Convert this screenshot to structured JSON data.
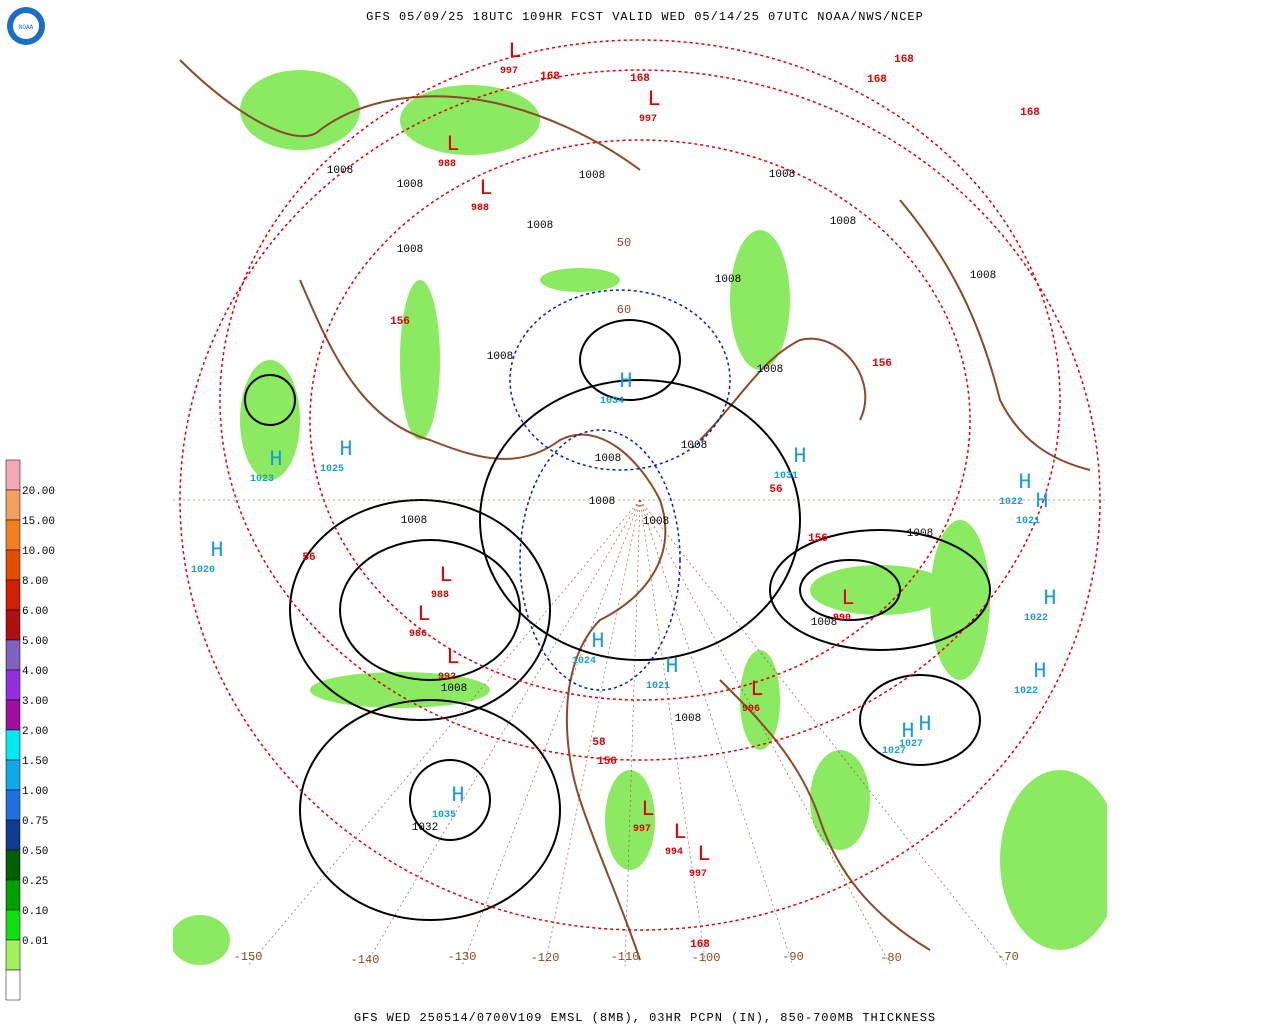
{
  "header": {
    "title": "GFS 05/09/25 18UTC 109HR FCST VALID WED 05/14/25 07UTC NOAA/NWS/NCEP",
    "logo": "NOAA"
  },
  "footer": {
    "text": "GFS WED 250514/0700V109 EMSL (8MB), 03HR PCPN (IN), 850-700MB THICKNESS"
  },
  "legend": {
    "labels": [
      "20.00",
      "15.00",
      "10.00",
      "8.00",
      "6.00",
      "5.00",
      "4.00",
      "3.00",
      "2.00",
      "1.50",
      "1.00",
      "0.75",
      "0.50",
      "0.25",
      "0.10",
      "0.01"
    ],
    "colors": [
      "#f4a8b8",
      "#f4a060",
      "#f08020",
      "#e05000",
      "#d02000",
      "#b01010",
      "#8060c0",
      "#9030e0",
      "#a010a0",
      "#00e8f0",
      "#10a8e8",
      "#2070e0",
      "#103c90",
      "#006000",
      "#00a000",
      "#10e010",
      "#a0f060",
      "#ffffff"
    ]
  },
  "map": {
    "longitude_labels": [
      "-150",
      "-140",
      "-130",
      "-120",
      "-110",
      "-100",
      "-90",
      "-80",
      "-70"
    ],
    "latitude_labels": [
      "50",
      "60"
    ],
    "highs": [
      {
        "label": "H",
        "value": "1023"
      },
      {
        "label": "H",
        "value": "1025"
      },
      {
        "label": "H",
        "value": "1020"
      },
      {
        "label": "H",
        "value": "1034"
      },
      {
        "label": "H",
        "value": "1031"
      },
      {
        "label": "H",
        "value": "1022"
      },
      {
        "label": "H",
        "value": "1021"
      },
      {
        "label": "H",
        "value": "1022"
      },
      {
        "label": "H",
        "value": "1022"
      },
      {
        "label": "H",
        "value": "1027"
      },
      {
        "label": "H",
        "value": "1027"
      },
      {
        "label": "H",
        "value": "1035"
      },
      {
        "label": "H",
        "value": "1021"
      },
      {
        "label": "H",
        "value": "1024"
      }
    ],
    "lows": [
      {
        "label": "L",
        "value": "988"
      },
      {
        "label": "L",
        "value": "986"
      },
      {
        "label": "L",
        "value": "992"
      },
      {
        "label": "L",
        "value": "990"
      },
      {
        "label": "L",
        "value": "997"
      },
      {
        "label": "L",
        "value": "994"
      },
      {
        "label": "L",
        "value": "997"
      },
      {
        "label": "L",
        "value": "988"
      },
      {
        "label": "L",
        "value": "988"
      },
      {
        "label": "L",
        "value": "997"
      },
      {
        "label": "L",
        "value": "997"
      },
      {
        "label": "L",
        "value": "996"
      }
    ],
    "isobar_labels": [
      "1008",
      "1008",
      "1008",
      "1008",
      "1008",
      "1008",
      "1008",
      "1008",
      "1008",
      "1008",
      "1008",
      "1008",
      "1008",
      "1008",
      "1008",
      "1008",
      "1008",
      "1008",
      "1008",
      "1008",
      "1032"
    ],
    "thickness_labels": [
      "56",
      "156",
      "56",
      "156",
      "58",
      "156",
      "168",
      "168",
      "168",
      "168",
      "168",
      "156",
      "168"
    ]
  }
}
